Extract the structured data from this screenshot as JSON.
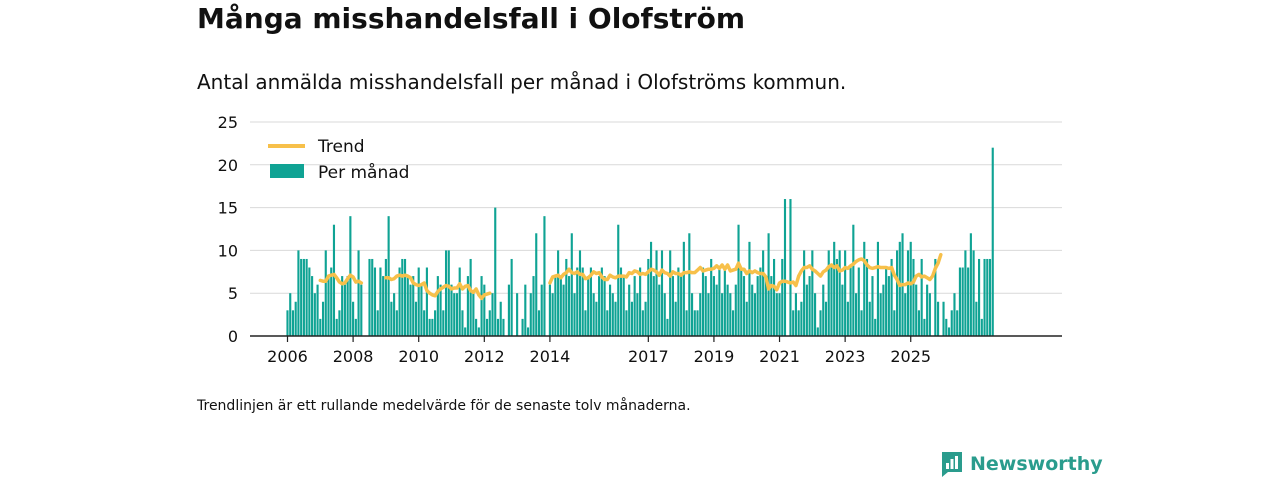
{
  "title": "Många misshandelsfall i Olofström",
  "subtitle": "Antal anmälda misshandelsfall per månad i Olofströms kommun.",
  "note": "Trendlinjen är ett rullande medelvärde för de senaste tolv månaderna.",
  "brand": "Newsworthy",
  "colors": {
    "bars": "#0fa394",
    "trend": "#f7c04a",
    "brand": "#2a9c8d"
  },
  "chart_data": {
    "type": "bar",
    "start": "2006-01",
    "ylim": [
      0,
      25
    ],
    "yticks": [
      0,
      5,
      10,
      15,
      20,
      25
    ],
    "xticks": [
      {
        "label": "2006",
        "year": 2006
      },
      {
        "label": "2008",
        "year": 2008
      },
      {
        "label": "2010",
        "year": 2010
      },
      {
        "label": "2012",
        "year": 2012
      },
      {
        "label": "2014",
        "year": 2014
      },
      {
        "label": "2017",
        "year": 2017
      },
      {
        "label": "2019",
        "year": 2019
      },
      {
        "label": "2021",
        "year": 2021
      },
      {
        "label": "2023",
        "year": 2023
      },
      {
        "label": "2025",
        "year": 2025
      }
    ],
    "grid": true,
    "legend_position": "top-left",
    "series": [
      {
        "name": "Per månad",
        "type": "bar",
        "values": [
          3,
          5,
          3,
          4,
          10,
          9,
          9,
          9,
          8,
          7,
          5,
          6,
          2,
          4,
          10,
          7,
          8,
          13,
          2,
          3,
          7,
          6,
          7,
          14,
          4,
          2,
          10,
          6,
          0,
          0,
          9,
          9,
          8,
          3,
          8,
          7,
          9,
          14,
          4,
          5,
          3,
          8,
          9,
          9,
          7,
          6,
          7,
          4,
          8,
          6,
          3,
          8,
          2,
          2,
          3,
          7,
          6,
          3,
          10,
          10,
          6,
          5,
          5,
          8,
          3,
          1,
          7,
          9,
          5,
          2,
          1,
          7,
          6,
          2,
          3,
          5,
          15,
          2,
          4,
          2,
          0,
          6,
          9,
          0,
          5,
          0,
          2,
          6,
          1,
          5,
          7,
          12,
          3,
          6,
          14,
          0,
          6,
          5,
          7,
          10,
          7,
          6,
          9,
          7,
          12,
          5,
          8,
          10,
          8,
          3,
          7,
          8,
          5,
          4,
          7,
          8,
          7,
          3,
          6,
          5,
          4,
          13,
          8,
          7,
          3,
          6,
          4,
          7,
          5,
          8,
          3,
          4,
          9,
          11,
          7,
          10,
          6,
          10,
          5,
          2,
          10,
          7,
          4,
          8,
          7,
          11,
          3,
          12,
          5,
          3,
          3,
          5,
          8,
          7,
          5,
          9,
          7,
          6,
          8,
          5,
          8,
          6,
          5,
          3,
          6,
          13,
          8,
          7,
          4,
          11,
          6,
          5,
          7,
          8,
          10,
          7,
          12,
          7,
          9,
          5,
          5,
          9,
          16,
          0,
          16,
          3,
          5,
          3,
          4,
          10,
          6,
          7,
          10,
          5,
          1,
          3,
          6,
          4,
          10,
          8,
          11,
          9,
          10,
          6,
          10,
          4,
          8,
          13,
          5,
          8,
          3,
          11,
          9,
          4,
          7,
          2,
          11,
          5,
          6,
          8,
          7,
          9,
          3,
          10,
          11,
          12,
          5,
          10,
          11,
          9,
          6,
          3,
          9,
          2,
          6,
          5,
          0,
          9,
          4,
          0,
          4,
          2,
          1,
          3,
          5,
          3,
          8,
          8,
          10,
          8,
          12,
          10,
          4,
          9,
          2,
          9,
          9,
          9,
          22
        ]
      },
      {
        "name": "Trend",
        "type": "line",
        "values": [
          null,
          null,
          null,
          null,
          null,
          null,
          null,
          null,
          null,
          null,
          null,
          null,
          6.5,
          6.4,
          6.4,
          7.0,
          7.1,
          7.2,
          6.8,
          6.3,
          6.1,
          6.2,
          6.7,
          7.1,
          6.9,
          6.3,
          6.4,
          6.2,
          null,
          null,
          null,
          null,
          null,
          null,
          null,
          null,
          6.8,
          6.8,
          6.6,
          6.7,
          7.0,
          7.1,
          7.0,
          7.1,
          7.0,
          6.8,
          6.2,
          6.0,
          5.9,
          6.0,
          6.2,
          5.3,
          5.0,
          4.8,
          4.7,
          5.2,
          5.5,
          5.7,
          5.9,
          5.8,
          5.5,
          5.6,
          5.6,
          6.1,
          5.5,
          5.8,
          5.9,
          5.3,
          5.1,
          5.5,
          4.8,
          4.4,
          4.8,
          4.9,
          5.0,
          null,
          null,
          null,
          null,
          null,
          null,
          null,
          null,
          null,
          null,
          null,
          null,
          null,
          null,
          null,
          null,
          null,
          null,
          null,
          null,
          null,
          6.2,
          6.9,
          7.0,
          7.1,
          6.8,
          7.2,
          7.4,
          7.8,
          7.4,
          7.3,
          7.5,
          7.2,
          7.2,
          6.7,
          6.8,
          7.1,
          7.5,
          7.3,
          7.4,
          6.9,
          6.6,
          6.6,
          7.1,
          6.9,
          6.8,
          7.0,
          7.0,
          7.0,
          6.9,
          7.4,
          7.3,
          7.6,
          7.5,
          7.2,
          7.3,
          7.2,
          7.5,
          7.8,
          7.7,
          7.5,
          7.1,
          7.7,
          7.4,
          7.3,
          7.0,
          7.5,
          7.3,
          7.3,
          7.1,
          7.4,
          7.4,
          7.5,
          7.4,
          7.4,
          7.7,
          8.0,
          7.6,
          7.7,
          7.8,
          7.8,
          7.9,
          8.2,
          7.9,
          8.3,
          7.8,
          8.3,
          7.6,
          7.7,
          7.8,
          8.5,
          7.8,
          7.8,
          7.3,
          7.6,
          7.4,
          7.6,
          7.4,
          7.3,
          7.3,
          6.9,
          5.5,
          5.9,
          5.8,
          5.4,
          6.2,
          6.4,
          6.4,
          6.3,
          6.2,
          6.3,
          5.9,
          7.0,
          7.6,
          8.0,
          8.0,
          8.2,
          7.8,
          7.6,
          7.3,
          7.0,
          7.5,
          7.7,
          8.1,
          8.3,
          8.0,
          8.2,
          7.6,
          7.7,
          8.0,
          7.9,
          8.2,
          8.4,
          8.7,
          8.9,
          9.0,
          8.8,
          8.3,
          8.0,
          7.9,
          8.0,
          8.1,
          8.0,
          8.0,
          8.0,
          7.9,
          8.0,
          7.1,
          6.6,
          5.9,
          6.0,
          6.0,
          6.2,
          6.1,
          6.3,
          7.0,
          7.2,
          6.9,
          7.0,
          6.8,
          6.6,
          7.0,
          7.9,
          8.5,
          9.5
        ]
      }
    ]
  }
}
